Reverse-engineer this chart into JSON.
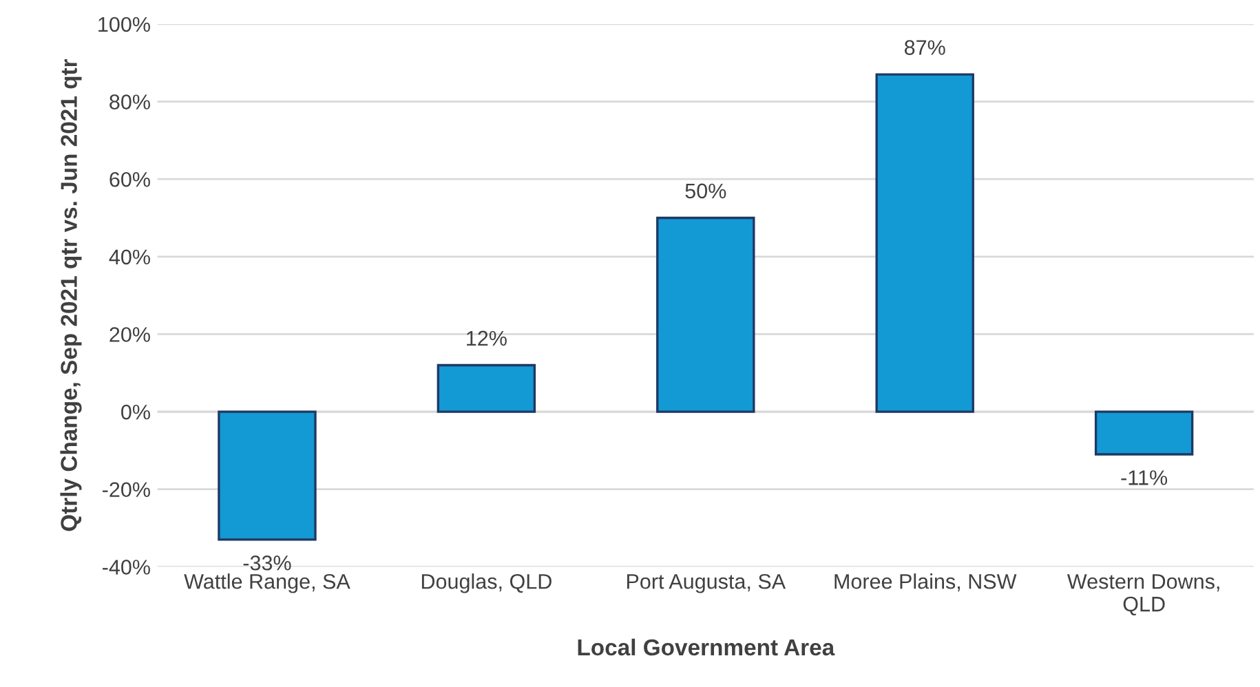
{
  "chart_data": {
    "type": "bar",
    "xlabel": "Local Government Area",
    "ylabel": "Qtrly Change, Sep 2021 qtr vs. Jun 2021 qtr",
    "categories": [
      "Wattle Range, SA",
      "Douglas, QLD",
      "Port Augusta, SA",
      "Moree Plains, NSW",
      "Western Downs,\nQLD"
    ],
    "values": [
      -33,
      12,
      50,
      87,
      -11
    ],
    "value_labels": [
      "-33%",
      "12%",
      "50%",
      "87%",
      "-11%"
    ],
    "color": "#1399d3",
    "ylim": [
      -40,
      100
    ],
    "yticks": [
      {
        "value": -40,
        "label": "-40%"
      },
      {
        "value": -20,
        "label": "-20%"
      },
      {
        "value": 0,
        "label": "0%"
      },
      {
        "value": 20,
        "label": "20%"
      },
      {
        "value": 40,
        "label": "40%"
      },
      {
        "value": 60,
        "label": "60%"
      },
      {
        "value": 80,
        "label": "80%"
      },
      {
        "value": 100,
        "label": "100%"
      }
    ],
    "grid": "y"
  }
}
